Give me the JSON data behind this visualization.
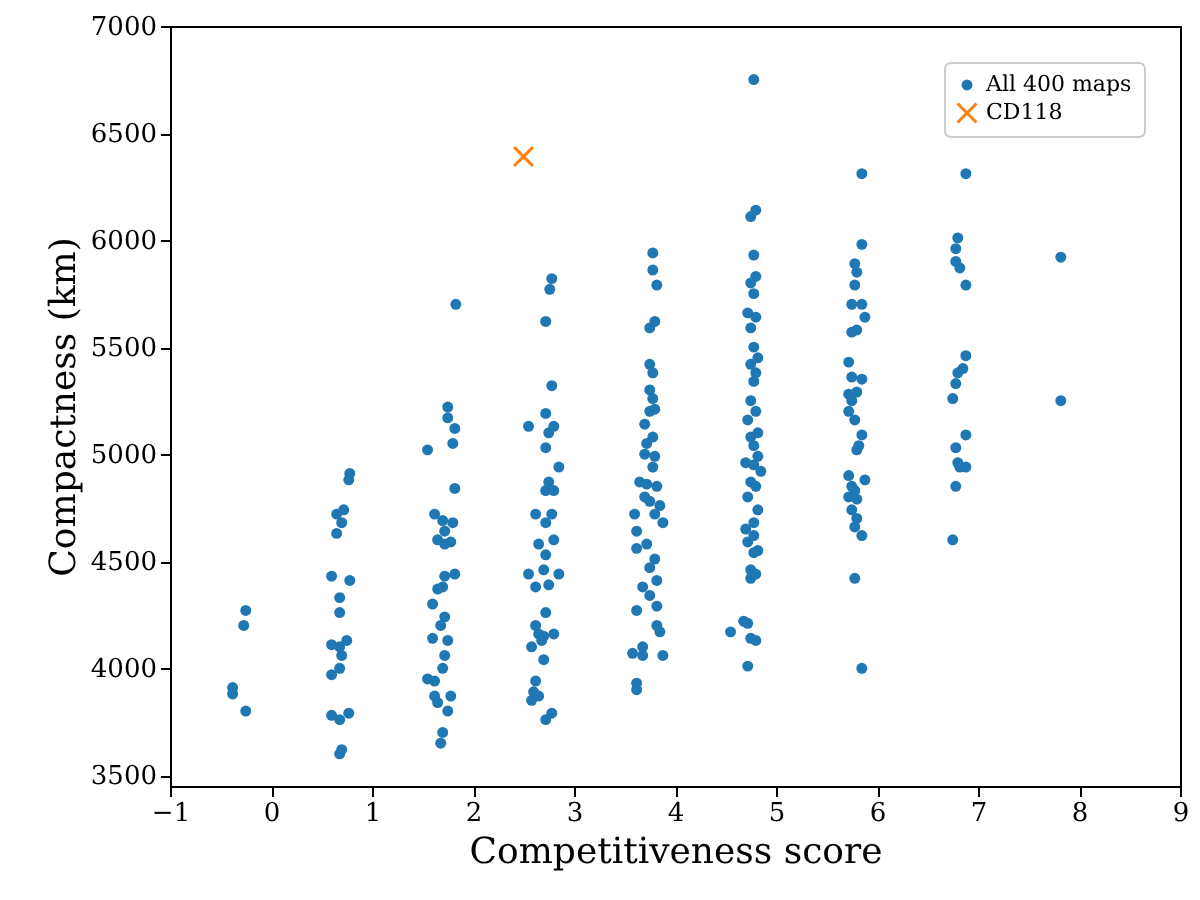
{
  "chart_data": {
    "type": "scatter",
    "xlabel": "Competitiveness score",
    "ylabel": "Compactness (km)",
    "xlim": [
      -1,
      9
    ],
    "ylim": [
      3450,
      7000
    ],
    "xticks": [
      {
        "value": -1,
        "label": "−1"
      },
      0,
      1,
      2,
      3,
      4,
      5,
      6,
      7,
      8,
      9
    ],
    "yticks": [
      3500,
      4000,
      4500,
      5000,
      5500,
      6000,
      6500,
      7000
    ],
    "grid": false,
    "legend": "top right",
    "series": [
      {
        "name": "All 400 maps",
        "color": "#1f77b4",
        "marker": "circle",
        "x": [
          -0.38,
          -0.38,
          -0.25,
          -0.27,
          -0.25,
          0.6,
          0.65,
          0.65,
          0.72,
          0.7,
          0.78,
          0.77,
          0.78,
          0.68,
          0.68,
          0.6,
          0.68,
          0.75,
          0.7,
          0.68,
          0.6,
          0.6,
          0.68,
          0.77,
          0.7,
          0.68,
          1.55,
          1.75,
          1.75,
          1.82,
          1.8,
          1.82,
          1.62,
          1.7,
          1.8,
          1.72,
          1.65,
          1.72,
          1.78,
          1.82,
          1.72,
          1.7,
          1.65,
          1.6,
          1.72,
          1.68,
          1.6,
          1.75,
          1.72,
          1.7,
          1.55,
          1.62,
          1.62,
          1.65,
          1.78,
          1.75,
          1.7,
          1.68,
          1.83,
          2.72,
          2.78,
          2.76,
          2.78,
          2.55,
          2.72,
          2.8,
          2.75,
          2.72,
          2.85,
          2.75,
          2.72,
          2.8,
          2.62,
          2.78,
          2.72,
          2.8,
          2.65,
          2.72,
          2.85,
          2.55,
          2.7,
          2.62,
          2.75,
          2.72,
          2.65,
          2.58,
          2.68,
          2.8,
          2.7,
          2.62,
          2.6,
          2.58,
          2.65,
          2.78,
          2.72,
          2.62,
          2.7,
          3.78,
          3.78,
          3.82,
          3.8,
          3.75,
          3.75,
          3.78,
          3.75,
          3.78,
          3.75,
          3.8,
          3.7,
          3.78,
          3.72,
          3.7,
          3.8,
          3.78,
          3.65,
          3.72,
          3.82,
          3.7,
          3.75,
          3.85,
          3.8,
          3.6,
          3.62,
          3.88,
          3.62,
          3.72,
          3.8,
          3.75,
          3.68,
          3.82,
          3.75,
          3.82,
          3.82,
          3.85,
          3.62,
          3.58,
          3.68,
          3.68,
          3.88,
          3.62,
          3.62,
          4.78,
          4.8,
          4.75,
          4.78,
          4.8,
          4.75,
          4.78,
          4.72,
          4.8,
          4.75,
          4.78,
          4.82,
          4.75,
          4.8,
          4.78,
          4.75,
          4.8,
          4.72,
          4.82,
          4.75,
          4.78,
          4.82,
          4.7,
          4.78,
          4.85,
          4.75,
          4.8,
          4.72,
          4.82,
          4.78,
          4.7,
          4.78,
          4.72,
          4.82,
          4.78,
          4.75,
          4.8,
          4.75,
          4.55,
          4.68,
          4.72,
          4.75,
          4.8,
          4.72,
          5.85,
          5.85,
          5.78,
          5.8,
          5.78,
          5.75,
          5.85,
          5.88,
          5.75,
          5.8,
          5.72,
          5.75,
          5.85,
          5.72,
          5.8,
          5.75,
          5.72,
          5.78,
          5.85,
          5.82,
          5.8,
          5.72,
          5.88,
          5.78,
          5.72,
          5.8,
          5.75,
          5.8,
          5.78,
          5.85,
          5.78,
          5.85,
          5.75,
          6.88,
          6.8,
          6.78,
          6.78,
          6.82,
          6.88,
          6.88,
          6.85,
          6.8,
          6.78,
          6.75,
          6.78,
          6.88,
          6.8,
          6.82,
          6.88,
          6.78,
          6.75,
          7.82,
          7.82
        ],
        "values": [
          3910,
          3880,
          4270,
          4200,
          3800,
          4430,
          4720,
          4630,
          4740,
          4680,
          4910,
          4880,
          4410,
          4330,
          4260,
          4110,
          4100,
          4130,
          4060,
          4000,
          3970,
          3780,
          3760,
          3790,
          3620,
          3600,
          5020,
          5220,
          5170,
          5120,
          5050,
          4840,
          4720,
          4690,
          4680,
          4640,
          4600,
          4580,
          4590,
          4440,
          4430,
          4380,
          4370,
          4300,
          4240,
          4200,
          4140,
          4130,
          4060,
          4000,
          3950,
          3940,
          3870,
          3840,
          3870,
          3800,
          3700,
          3650,
          5700,
          5620,
          5820,
          5770,
          5320,
          5130,
          5190,
          5130,
          5100,
          5030,
          4940,
          4870,
          4830,
          4830,
          4720,
          4720,
          4680,
          4600,
          4580,
          4530,
          4440,
          4440,
          4460,
          4380,
          4390,
          4260,
          4160,
          4100,
          4130,
          4160,
          4040,
          3940,
          3890,
          3850,
          3870,
          3790,
          3760,
          4200,
          4150,
          5940,
          5860,
          5790,
          5620,
          5590,
          5420,
          5380,
          5300,
          5260,
          5200,
          5210,
          5140,
          5080,
          5050,
          5000,
          4990,
          4940,
          4870,
          4860,
          4850,
          4800,
          4780,
          4760,
          4720,
          4720,
          4640,
          4680,
          4560,
          4580,
          4510,
          4470,
          4380,
          4410,
          4340,
          4290,
          4200,
          4170,
          4270,
          4070,
          4100,
          4060,
          4060,
          3930,
          3900,
          6750,
          6140,
          6110,
          5930,
          5830,
          5800,
          5750,
          5660,
          5640,
          5590,
          5500,
          5450,
          5420,
          5380,
          5340,
          5250,
          5200,
          5160,
          5100,
          5080,
          5040,
          4990,
          4960,
          4950,
          4920,
          4870,
          4850,
          4800,
          4740,
          4680,
          4650,
          4620,
          4590,
          4550,
          4540,
          4460,
          4440,
          4420,
          4170,
          4220,
          4210,
          4140,
          4130,
          4010,
          6310,
          5980,
          5890,
          5850,
          5790,
          5700,
          5700,
          5640,
          5570,
          5580,
          5430,
          5360,
          5350,
          5280,
          5290,
          5250,
          5200,
          5160,
          5090,
          5040,
          5020,
          4900,
          4880,
          4830,
          4800,
          4790,
          4740,
          4700,
          4660,
          4620,
          4420,
          4000,
          4850,
          6310,
          6010,
          5960,
          5900,
          5870,
          5790,
          5460,
          5400,
          5380,
          5330,
          5260,
          5030,
          5090,
          4960,
          4940,
          4940,
          4850,
          4600,
          5920,
          5250
        ]
      },
      {
        "name": "CD118",
        "color": "#ff7f0e",
        "marker": "cross",
        "x": [
          2.5
        ],
        "values": [
          6390
        ]
      }
    ]
  }
}
